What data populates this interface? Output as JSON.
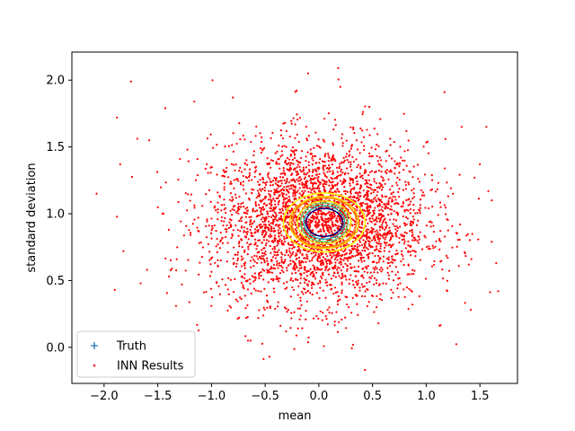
{
  "chart_data": {
    "type": "scatter",
    "title": "",
    "xlabel": "mean",
    "ylabel": "standard deviation",
    "xlim": [
      -2.3,
      1.85
    ],
    "ylim": [
      -0.27,
      2.21
    ],
    "xticks": [
      -2.0,
      -1.5,
      -1.0,
      -0.5,
      0.0,
      0.5,
      1.0,
      1.5
    ],
    "xtick_labels": [
      "−2.0",
      "−1.5",
      "−1.0",
      "−0.5",
      "0.0",
      "0.5",
      "1.0",
      "1.5"
    ],
    "yticks": [
      0.0,
      0.5,
      1.0,
      1.5,
      2.0
    ],
    "ytick_labels": [
      "0.0",
      "0.5",
      "1.0",
      "1.5",
      "2.0"
    ],
    "grid": false,
    "legend_position": "lower-left",
    "series": [
      {
        "name": "Truth",
        "marker": "+",
        "color": "#1f77b4",
        "points": []
      },
      {
        "name": "INN Results",
        "marker": "dot",
        "color": "#ff0000",
        "distribution": {
          "kind": "gaussian",
          "count": 3500,
          "mean_x": 0.0,
          "sd_x": 0.5,
          "mean_y": 0.93,
          "sd_y": 0.3
        },
        "points": [
          [
            -2.07,
            1.15
          ],
          [
            -1.9,
            0.43
          ],
          [
            -1.88,
            1.72
          ],
          [
            -1.75,
            1.99
          ],
          [
            -1.85,
            1.37
          ],
          [
            -1.82,
            0.72
          ],
          [
            -1.6,
            0.58
          ],
          [
            -1.58,
            1.55
          ],
          [
            -1.43,
            1.79
          ],
          [
            -1.33,
            0.31
          ],
          [
            -1.16,
            1.84
          ],
          [
            -1.0,
            0.31
          ],
          [
            -0.8,
            1.87
          ],
          [
            -0.66,
            0.05
          ],
          [
            -0.46,
            -0.07
          ],
          [
            -0.1,
            2.05
          ],
          [
            0.18,
            2.09
          ],
          [
            0.43,
            -0.17
          ],
          [
            0.2,
            1.95
          ],
          [
            0.47,
            1.8
          ],
          [
            1.17,
            1.91
          ],
          [
            1.33,
            1.65
          ],
          [
            1.56,
            1.65
          ],
          [
            1.61,
            1.1
          ],
          [
            1.61,
            0.79
          ],
          [
            1.67,
            0.42
          ],
          [
            1.42,
            0.66
          ],
          [
            1.45,
            1.27
          ],
          [
            1.5,
            1.37
          ],
          [
            1.2,
            0.67
          ]
        ]
      }
    ],
    "contours": {
      "center": [
        0.05,
        0.935
      ],
      "levels": [
        {
          "color": "#ffff00",
          "rx": 0.38,
          "ry": 0.22
        },
        {
          "color": "#ffd700",
          "rx": 0.32,
          "ry": 0.195
        },
        {
          "color": "#ff8c00",
          "rx": 0.3,
          "ry": 0.185
        },
        {
          "color": "#f0e000",
          "rx": 0.25,
          "ry": 0.16
        },
        {
          "color": "#66cc66",
          "rx": 0.22,
          "ry": 0.145
        },
        {
          "color": "#20b2aa",
          "rx": 0.19,
          "ry": 0.125
        },
        {
          "color": "#000080",
          "rx": 0.17,
          "ry": 0.105
        }
      ]
    }
  }
}
